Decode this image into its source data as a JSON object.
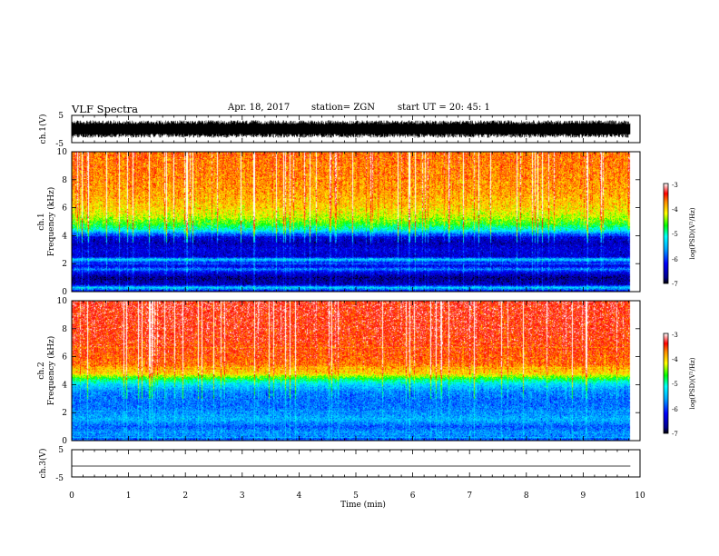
{
  "header": {
    "title": "VLF Spectra",
    "date": "Apr. 18, 2017",
    "station": "station= ZGN",
    "start": "start  UT =   20: 45: 1"
  },
  "chart_data": [
    {
      "type": "line",
      "ylabel": "ch.1(V)",
      "ylim": [
        -5,
        5
      ],
      "yticks": [
        -5,
        5
      ],
      "xlim": [
        0,
        10
      ],
      "x_extent": [
        0,
        9.83
      ],
      "style": "dense-noise",
      "envelope": [
        -3.2,
        3.2
      ],
      "color": "#000000"
    },
    {
      "type": "heatmap",
      "channel": "ch.1",
      "ylabel": "Frequency (kHz)",
      "ylim": [
        0,
        10
      ],
      "yticks": [
        0,
        2,
        4,
        6,
        8,
        10
      ],
      "xlim": [
        0,
        10
      ],
      "x_extent": [
        0,
        9.83
      ],
      "colorbar": {
        "label": "log(PSD)(V²/Hz)",
        "range": [
          -7,
          -3
        ],
        "ticks": [
          -3,
          -4,
          -5,
          -6,
          -7
        ]
      },
      "profile": [
        [
          0.0,
          -6.4
        ],
        [
          0.3,
          -5.2
        ],
        [
          0.5,
          -6.5
        ],
        [
          1.0,
          -6.7
        ],
        [
          1.4,
          -6.2
        ],
        [
          1.6,
          -5.6
        ],
        [
          1.8,
          -6.3
        ],
        [
          2.1,
          -6.0
        ],
        [
          2.3,
          -5.2
        ],
        [
          2.5,
          -6.4
        ],
        [
          3.0,
          -6.3
        ],
        [
          3.5,
          -6.5
        ],
        [
          3.9,
          -6.3
        ],
        [
          4.1,
          -5.8
        ],
        [
          4.4,
          -5.0
        ],
        [
          4.8,
          -4.5
        ],
        [
          5.3,
          -4.1
        ],
        [
          6.0,
          -3.8
        ],
        [
          7.0,
          -3.6
        ],
        [
          8.0,
          -3.5
        ],
        [
          10.0,
          -3.4
        ]
      ]
    },
    {
      "type": "heatmap",
      "channel": "ch.2",
      "ylabel": "Frequency (kHz)",
      "ylim": [
        0,
        10
      ],
      "yticks": [
        0,
        2,
        4,
        6,
        8,
        10
      ],
      "xlim": [
        0,
        10
      ],
      "x_extent": [
        0,
        9.83
      ],
      "colorbar": {
        "label": "log(PSD)(V²/Hz)",
        "range": [
          -7,
          -3
        ],
        "ticks": [
          -3,
          -4,
          -5,
          -6,
          -7
        ]
      },
      "profile": [
        [
          0.0,
          -5.9
        ],
        [
          0.5,
          -5.5
        ],
        [
          1.0,
          -5.8
        ],
        [
          1.5,
          -5.4
        ],
        [
          2.0,
          -5.6
        ],
        [
          2.5,
          -5.7
        ],
        [
          3.0,
          -5.7
        ],
        [
          3.5,
          -5.6
        ],
        [
          4.0,
          -5.2
        ],
        [
          4.4,
          -4.6
        ],
        [
          4.8,
          -3.8
        ],
        [
          5.5,
          -3.4
        ],
        [
          7.0,
          -3.2
        ],
        [
          10.0,
          -3.1
        ]
      ]
    },
    {
      "type": "line",
      "ylabel": "ch.3(V)",
      "ylim": [
        -5,
        5
      ],
      "yticks": [
        -5,
        5
      ],
      "xlim": [
        0,
        10
      ],
      "x_extent": [
        0,
        9.83
      ],
      "style": "flat",
      "level": -1.0,
      "color": "#000000"
    }
  ],
  "xaxis": {
    "label": "Time (min)",
    "ticks": [
      "0",
      "1",
      "2",
      "3",
      "4",
      "5",
      "6",
      "7",
      "8",
      "9",
      "10"
    ]
  }
}
